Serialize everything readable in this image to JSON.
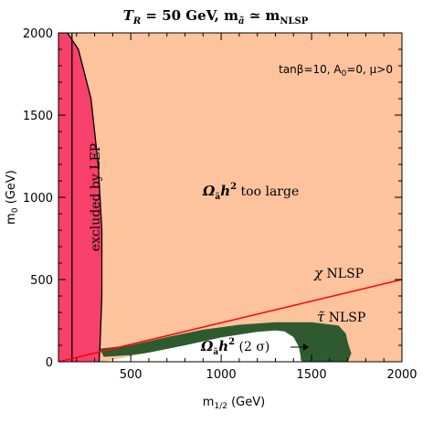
{
  "chart_data": {
    "type": "area",
    "title": "T_R = 50 GeV, m_ã ≃ m_NLSP",
    "title_parts": {
      "t": "T",
      "r": "R",
      "eq1": " = 50 GeV, m",
      "atilde": "ã",
      "sim": " ≃ m",
      "nlsp": "NLSP"
    },
    "xlabel": "m_1/2 (GeV)",
    "xlabel_parts": {
      "m": "m",
      "sub": "1/2",
      "unit": " (GeV)"
    },
    "ylabel": "m_0 (GeV)",
    "ylabel_parts": {
      "m": "m",
      "sub": "0",
      "unit": " (GeV)"
    },
    "xlim": [
      100,
      2000
    ],
    "ylim": [
      0,
      2000
    ],
    "xticks": [
      500,
      1000,
      1500,
      2000
    ],
    "yticks": [
      0,
      500,
      1000,
      1500,
      2000
    ],
    "grid": false,
    "colors": {
      "too_large": "#fcc39d",
      "lep": "#f7406a",
      "stau": "#2f5a30",
      "allowed": "#ffffff",
      "chi_line": "#ff0000"
    },
    "annotations": {
      "params": "tanβ=10, A₀=0, μ>0",
      "params_parts": {
        "tan": "tanβ=10, A",
        "sub": "0",
        "rest": "=0, μ>0"
      },
      "too_large": "Ω_ã h² too large",
      "too_large_parts": {
        "omega": "Ω",
        "sub": "ã",
        "h": "h",
        "sup": "2",
        "rest": " too large"
      },
      "excluded": "excluded by LEP",
      "chi": "χ NLSP",
      "chi_parts": {
        "sym": "χ",
        "rest": " NLSP"
      },
      "stau": "τ̃ NLSP",
      "stau_parts": {
        "sym": "τ̃",
        "rest": " NLSP"
      },
      "two_sigma": "Ω_ã h² (2 σ)",
      "two_sigma_parts": {
        "omega": "Ω",
        "sub": "ã",
        "h": "h",
        "sup": "2",
        "rest": " (2 σ)"
      }
    },
    "regions": [
      {
        "name": "too-large",
        "points": [
          [
            100,
            0
          ],
          [
            2000,
            0
          ],
          [
            2000,
            2000
          ],
          [
            100,
            2000
          ]
        ]
      },
      {
        "name": "excluded-by-lep",
        "points": [
          [
            100,
            2000
          ],
          [
            150,
            2000
          ],
          [
            210,
            1900
          ],
          [
            280,
            1600
          ],
          [
            320,
            1200
          ],
          [
            340,
            800
          ],
          [
            340,
            400
          ],
          [
            330,
            100
          ],
          [
            325,
            0
          ],
          [
            100,
            0
          ]
        ]
      },
      {
        "name": "stau-nlsp",
        "points": [
          [
            330,
            80
          ],
          [
            500,
            100
          ],
          [
            700,
            150
          ],
          [
            900,
            195
          ],
          [
            1100,
            225
          ],
          [
            1300,
            240
          ],
          [
            1500,
            240
          ],
          [
            1650,
            220
          ],
          [
            1690,
            170
          ],
          [
            1700,
            120
          ],
          [
            1720,
            50
          ],
          [
            1700,
            0
          ],
          [
            1450,
            0
          ],
          [
            1420,
            40
          ],
          [
            1400,
            100
          ],
          [
            1300,
            140
          ],
          [
            1150,
            130
          ],
          [
            900,
            100
          ],
          [
            700,
            70
          ],
          [
            500,
            40
          ],
          [
            350,
            30
          ]
        ]
      },
      {
        "name": "two-sigma-allowed",
        "points": [
          [
            350,
            0
          ],
          [
            800,
            100
          ],
          [
            1000,
            148
          ],
          [
            1200,
            182
          ],
          [
            1300,
            190
          ],
          [
            1350,
            185
          ],
          [
            1400,
            150
          ],
          [
            1430,
            90
          ],
          [
            1440,
            30
          ],
          [
            1440,
            0
          ]
        ]
      }
    ],
    "boundaries": [
      {
        "name": "lep-boundary",
        "points": [
          [
            100,
            2000
          ],
          [
            150,
            2000
          ],
          [
            210,
            1900
          ],
          [
            280,
            1600
          ],
          [
            320,
            1200
          ],
          [
            340,
            800
          ],
          [
            340,
            400
          ],
          [
            330,
            100
          ],
          [
            325,
            0
          ]
        ]
      },
      {
        "name": "lep-inner-boundary",
        "points": [
          [
            175,
            2000
          ],
          [
            175,
            0
          ]
        ]
      }
    ],
    "series": [
      {
        "points": [
          [
            100,
            0
          ],
          [
            2000,
            500
          ]
        ]
      }
    ]
  }
}
